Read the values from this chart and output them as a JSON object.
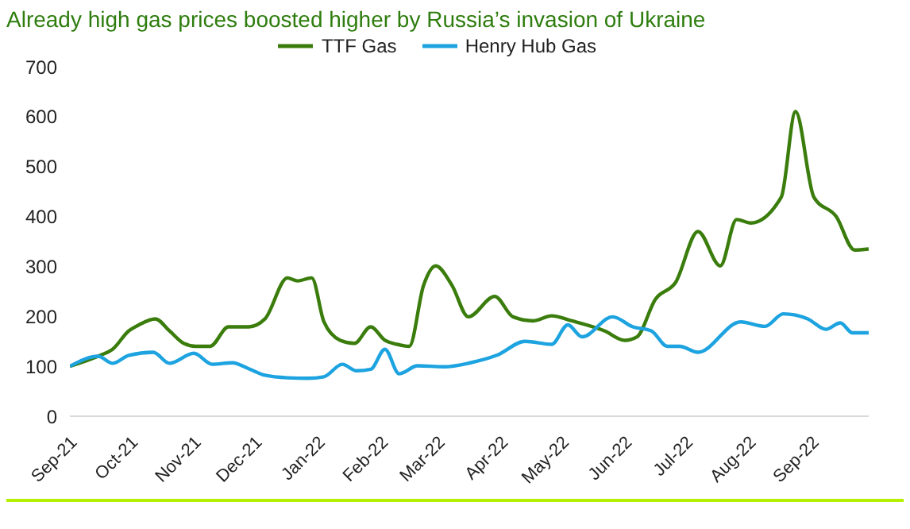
{
  "chart_data": {
    "type": "line",
    "title": "Already high gas prices boosted higher by Russia’s invasion of Ukraine",
    "xlim": [
      "2021-09-01",
      "2022-09-29"
    ],
    "xticks": [
      {
        "value": "2021-09-01",
        "label": "Sep-21"
      },
      {
        "value": "2021-10-01",
        "label": "Oct-21"
      },
      {
        "value": "2021-11-01",
        "label": "Nov-21"
      },
      {
        "value": "2021-12-01",
        "label": "Dec-21"
      },
      {
        "value": "2022-01-01",
        "label": "Jan-22"
      },
      {
        "value": "2022-02-01",
        "label": "Feb-22"
      },
      {
        "value": "2022-03-01",
        "label": "Mar-22"
      },
      {
        "value": "2022-04-01",
        "label": "Apr-22"
      },
      {
        "value": "2022-05-01",
        "label": "May-22"
      },
      {
        "value": "2022-06-01",
        "label": "Jun-22"
      },
      {
        "value": "2022-07-01",
        "label": "Jul-22"
      },
      {
        "value": "2022-08-01",
        "label": "Aug-22"
      },
      {
        "value": "2022-09-01",
        "label": "Sep-22"
      }
    ],
    "ylim": [
      0,
      700
    ],
    "yticks": [
      0,
      100,
      200,
      300,
      400,
      500,
      600,
      700
    ],
    "grid": false,
    "legend": "top",
    "marker": "none",
    "line_style": "solid",
    "series": [
      {
        "name": "TTF Gas",
        "color": "#3a7d0c",
        "x": [
          "2021-09-01",
          "2021-09-16",
          "2021-09-22",
          "2021-09-30",
          "2021-10-05",
          "2021-10-13",
          "2021-10-20",
          "2021-10-27",
          "2021-11-02",
          "2021-11-09",
          "2021-11-18",
          "2021-11-28",
          "2021-12-06",
          "2021-12-17",
          "2021-12-22",
          "2021-12-29",
          "2022-01-04",
          "2022-01-12",
          "2022-01-19",
          "2022-01-27",
          "2022-02-03",
          "2022-02-09",
          "2022-02-15",
          "2022-02-22",
          "2022-02-28",
          "2022-03-08",
          "2022-03-16",
          "2022-03-29",
          "2022-04-07",
          "2022-04-17",
          "2022-04-26",
          "2022-05-06",
          "2022-05-22",
          "2022-06-01",
          "2022-06-07",
          "2022-06-16",
          "2022-06-26",
          "2022-07-07",
          "2022-07-18",
          "2022-07-26",
          "2022-08-02",
          "2022-08-17",
          "2022-08-24",
          "2022-09-02",
          "2022-09-13",
          "2022-09-22",
          "2022-09-29"
        ],
        "values": [
          100,
          122,
          134,
          171,
          183,
          195,
          171,
          146,
          140,
          140,
          179,
          179,
          195,
          277,
          271,
          277,
          189,
          152,
          146,
          179,
          152,
          144,
          140,
          262,
          301,
          262,
          199,
          240,
          199,
          191,
          201,
          191,
          171,
          152,
          159,
          234,
          268,
          370,
          301,
          394,
          387,
          439,
          610,
          439,
          400,
          333,
          335
        ]
      },
      {
        "name": "Henry Hub Gas",
        "color": "#1ca3e0",
        "x": [
          "2021-09-01",
          "2021-09-15",
          "2021-09-22",
          "2021-09-30",
          "2021-10-12",
          "2021-10-20",
          "2021-11-01",
          "2021-11-10",
          "2021-11-20",
          "2021-11-28",
          "2021-12-06",
          "2021-12-17",
          "2021-12-27",
          "2022-01-04",
          "2022-01-13",
          "2022-01-20",
          "2022-01-27",
          "2022-02-03",
          "2022-02-10",
          "2022-02-19",
          "2022-03-04",
          "2022-03-17",
          "2022-03-30",
          "2022-04-13",
          "2022-04-26",
          "2022-05-04",
          "2022-05-11",
          "2022-05-26",
          "2022-06-05",
          "2022-06-14",
          "2022-06-22",
          "2022-06-28",
          "2022-07-07",
          "2022-07-28",
          "2022-08-09",
          "2022-08-18",
          "2022-08-30",
          "2022-09-08",
          "2022-09-15",
          "2022-09-21",
          "2022-09-29"
        ],
        "values": [
          100,
          120,
          106,
          122,
          128,
          106,
          126,
          104,
          107,
          95,
          82,
          77,
          76,
          79,
          104,
          91,
          94,
          134,
          85,
          101,
          99,
          107,
          122,
          150,
          144,
          183,
          159,
          199,
          179,
          171,
          140,
          140,
          128,
          189,
          180,
          205,
          195,
          174,
          187,
          167,
          167
        ]
      }
    ]
  }
}
